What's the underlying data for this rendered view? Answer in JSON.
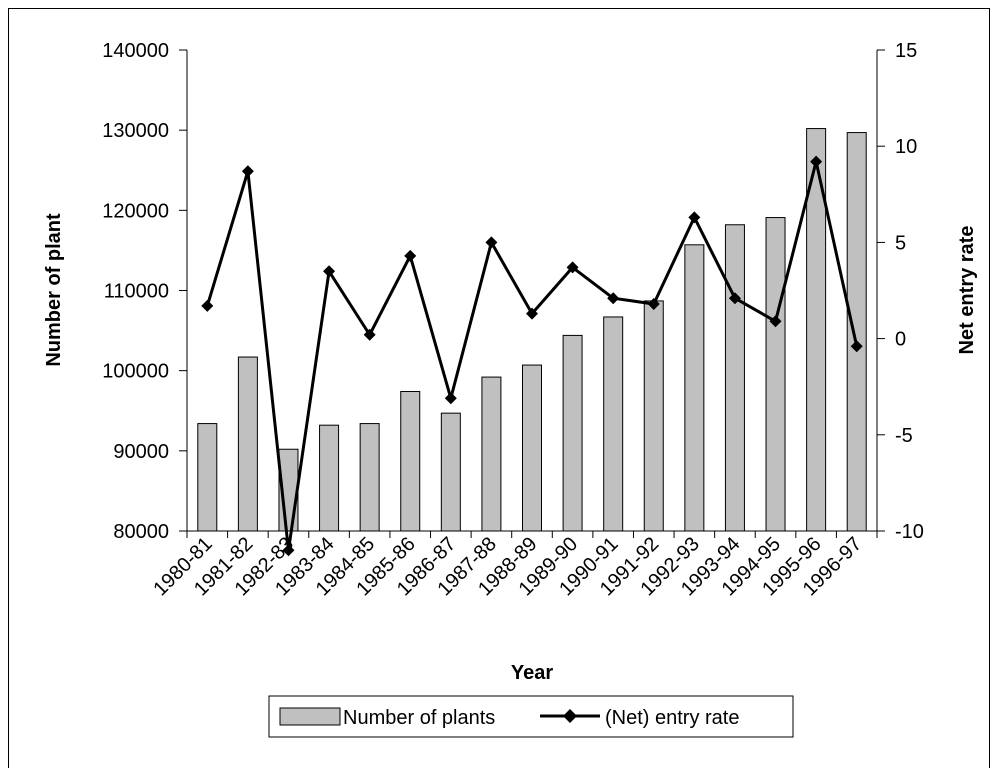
{
  "chart_data": {
    "type": "bar",
    "categories": [
      "1980-81",
      "1981-82",
      "1982-83",
      "1983-84",
      "1984-85",
      "1985-86",
      "1986-87",
      "1987-88",
      "1988-89",
      "1989-90",
      "1990-91",
      "1991-92",
      "1992-93",
      "1993-94",
      "1994-95",
      "1995-96",
      "1996-97"
    ],
    "series": [
      {
        "name": "Number of plants",
        "type": "bar",
        "axis": "left",
        "values": [
          93400,
          101700,
          90200,
          93200,
          93400,
          97400,
          94700,
          99200,
          100700,
          104400,
          106700,
          108700,
          115700,
          118200,
          119100,
          130200,
          129700
        ]
      },
      {
        "name": "(Net) entry rate",
        "type": "line",
        "axis": "right",
        "values": [
          1.7,
          8.7,
          -11.0,
          3.5,
          0.2,
          4.3,
          -3.1,
          5.0,
          1.3,
          3.7,
          2.1,
          1.8,
          6.3,
          2.1,
          0.9,
          9.2,
          -0.4
        ]
      }
    ],
    "xlabel": "Year",
    "ylabel": "Number of plant",
    "y2label": "Net entry rate",
    "ylim": [
      80000,
      140000
    ],
    "yticks": [
      80000,
      90000,
      100000,
      110000,
      120000,
      130000,
      140000
    ],
    "y2lim": [
      -10,
      15
    ],
    "y2ticks": [
      -10,
      -5,
      0,
      5,
      10,
      15
    ],
    "grid": false,
    "legend_position": "bottom",
    "colors": {
      "bar_fill": "#c0c0c0",
      "bar_stroke": "#000000",
      "line": "#000000",
      "marker": "#000000"
    }
  }
}
